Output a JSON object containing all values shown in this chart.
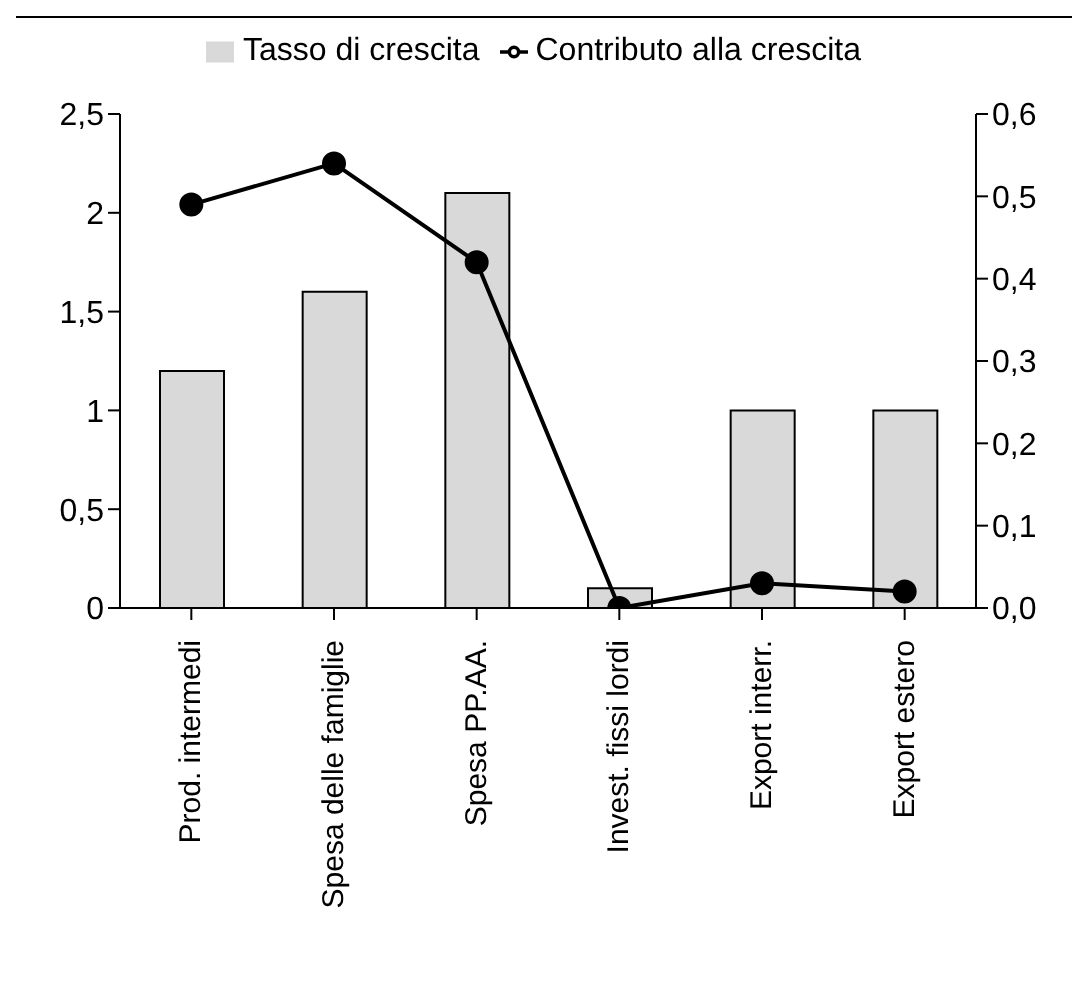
{
  "chart_data": {
    "type": "bar",
    "categories": [
      "Prod. intermedi",
      "Spesa delle famiglie",
      "Spesa PP.AA.",
      "Invest. fissi lordi",
      "Export interr.",
      "Export estero"
    ],
    "series": [
      {
        "name": "Tasso di crescita",
        "color": "#d9d9d9",
        "values": [
          1.2,
          1.6,
          2.1,
          0.1,
          1.0,
          1.0
        ]
      },
      {
        "name": "Contributo alla crescita",
        "type": "line",
        "axis": "y2",
        "color": "#000000",
        "values": [
          0.49,
          0.54,
          0.42,
          0.0,
          0.03,
          0.02
        ]
      }
    ],
    "ylim": [
      0,
      2.5
    ],
    "yticks": [
      {
        "value": 0,
        "label": "0"
      },
      {
        "value": 0.5,
        "label": "0,5"
      },
      {
        "value": 1,
        "label": "1"
      },
      {
        "value": 1.5,
        "label": "1,5"
      },
      {
        "value": 2,
        "label": "2"
      },
      {
        "value": 2.5,
        "label": "2,5"
      }
    ],
    "y2lim": [
      0,
      0.6
    ],
    "y2ticks": [
      {
        "value": 0,
        "label": "0,0"
      },
      {
        "value": 0.1,
        "label": "0,1"
      },
      {
        "value": 0.2,
        "label": "0,2"
      },
      {
        "value": 0.3,
        "label": "0,3"
      },
      {
        "value": 0.4,
        "label": "0,4"
      },
      {
        "value": 0.5,
        "label": "0,5"
      },
      {
        "value": 0.6,
        "label": "0,6"
      }
    ],
    "legend": "top",
    "marker": "circle",
    "grid": false
  }
}
